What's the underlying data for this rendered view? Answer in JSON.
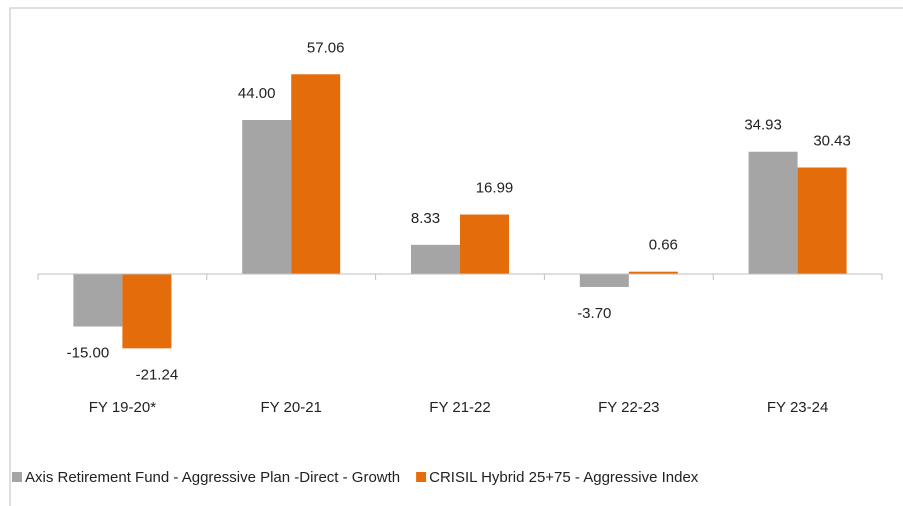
{
  "chart_data": {
    "type": "bar",
    "categories": [
      "FY 19-20*",
      "FY 20-21",
      "FY 21-22",
      "FY 22-23",
      "FY 23-24"
    ],
    "series": [
      {
        "name": "Axis Retirement Fund - Aggressive Plan -Direct - Growth",
        "color": "#a5a5a5",
        "values": [
          -15.0,
          44.0,
          8.33,
          -3.7,
          34.93
        ],
        "value_labels": [
          "-15.00",
          "44.00",
          "8.33",
          "-3.70",
          "34.93"
        ]
      },
      {
        "name": "CRISIL Hybrid 25+75 - Aggressive Index",
        "color": "#e46c0a",
        "values": [
          -21.24,
          57.06,
          16.99,
          0.66,
          30.43
        ],
        "value_labels": [
          "-21.24",
          "57.06",
          "16.99",
          "0.66",
          "30.43"
        ]
      }
    ],
    "ylim": [
      -30,
      70
    ],
    "legend": "bottom"
  }
}
